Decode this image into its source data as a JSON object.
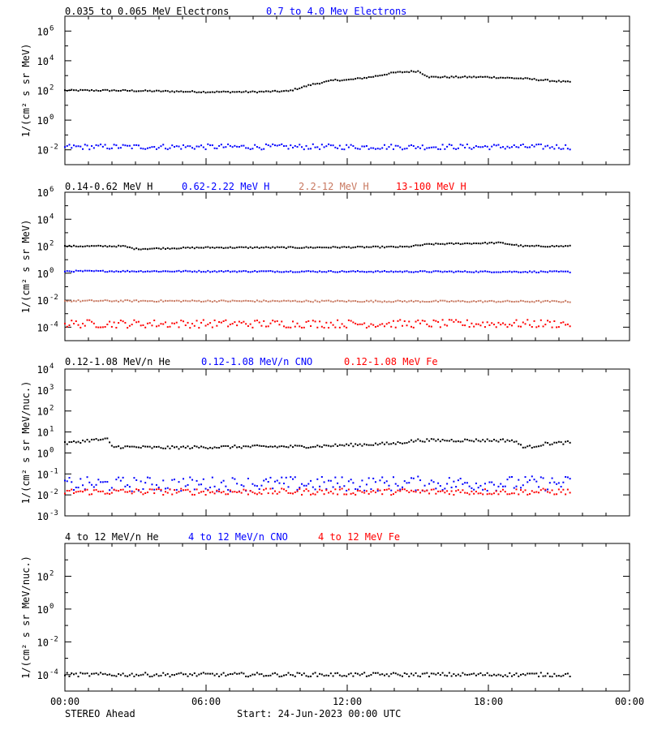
{
  "footer": {
    "observatory": "STEREO Ahead",
    "start": "Start: 24-Jun-2023 00:00 UTC"
  },
  "x_axis": {
    "range_hours": [
      0,
      24
    ],
    "ticks": [
      {
        "hour": 0,
        "label": "00:00"
      },
      {
        "hour": 6,
        "label": "06:00"
      },
      {
        "hour": 12,
        "label": "12:00"
      },
      {
        "hour": 18,
        "label": "18:00"
      },
      {
        "hour": 24,
        "label": "00:00"
      }
    ]
  },
  "chart_data": [
    {
      "type": "scatter",
      "ylabel": "1/(cm² s sr MeV)",
      "yscale": "log",
      "ylim_exp": [
        -3,
        7
      ],
      "yticks_exp": [
        -2,
        0,
        2,
        4,
        6
      ],
      "series": [
        {
          "name": "0.035 to 0.065 MeV Electrons",
          "color": "#000000",
          "x": [
            0,
            2,
            4,
            6,
            8,
            9.5,
            10.5,
            11.5,
            12,
            13,
            14,
            15,
            15.5,
            18,
            19.5,
            21.5
          ],
          "logy": [
            2.0,
            2.0,
            1.95,
            1.9,
            1.9,
            1.95,
            2.4,
            2.7,
            2.7,
            2.9,
            3.2,
            3.3,
            2.9,
            2.9,
            2.8,
            2.55
          ],
          "scatter": 0.05
        },
        {
          "name": "0.7 to 4.0 Mev Electrons",
          "color": "#0000ff",
          "x": [
            0,
            21.5
          ],
          "logy": [
            -1.8,
            -1.8
          ],
          "scatter": 0.18
        }
      ]
    },
    {
      "type": "scatter",
      "ylabel": "1/(cm² s sr MeV)",
      "yscale": "log",
      "ylim_exp": [
        -5,
        6
      ],
      "yticks_exp": [
        -4,
        -2,
        0,
        2,
        4,
        6
      ],
      "series": [
        {
          "name": "0.14-0.62 MeV H",
          "color": "#000000",
          "x": [
            0,
            2.5,
            3,
            6,
            10,
            14.5,
            15.5,
            18.5,
            19.5,
            21.5
          ],
          "logy": [
            2.0,
            2.0,
            1.8,
            1.9,
            1.9,
            1.95,
            2.15,
            2.25,
            2.0,
            2.0
          ],
          "scatter": 0.05
        },
        {
          "name": "0.62-2.22 MeV H",
          "color": "#0000ff",
          "x": [
            0,
            21.5
          ],
          "logy": [
            0.15,
            0.1
          ],
          "scatter": 0.05
        },
        {
          "name": "2.2-12 MeV H",
          "color": "#c87860",
          "x": [
            0,
            21.5
          ],
          "logy": [
            -2.05,
            -2.1
          ],
          "scatter": 0.06
        },
        {
          "name": "13-100 MeV H",
          "color": "#ff0000",
          "x": [
            0,
            21.5
          ],
          "logy": [
            -3.75,
            -3.75
          ],
          "scatter": 0.3
        }
      ]
    },
    {
      "type": "scatter",
      "ylabel": "1/(cm² s sr MeV/nuc.)",
      "yscale": "log",
      "ylim_exp": [
        -3,
        4
      ],
      "yticks_exp": [
        -3,
        -2,
        -1,
        0,
        1,
        2,
        3,
        4
      ],
      "series": [
        {
          "name": "0.12-1.08 MeV/n He",
          "color": "#000000",
          "x": [
            0,
            1,
            1.8,
            2,
            4,
            8,
            10,
            14,
            15,
            19,
            19.6,
            20.5,
            21.5
          ],
          "logy": [
            0.45,
            0.6,
            0.65,
            0.3,
            0.25,
            0.3,
            0.3,
            0.45,
            0.6,
            0.6,
            0.25,
            0.45,
            0.5
          ],
          "scatter": 0.07
        },
        {
          "name": "0.12-1.08 MeV/n CNO",
          "color": "#0000ff",
          "x": [
            0,
            21.5
          ],
          "logy": [
            -1.5,
            -1.45
          ],
          "scatter": 0.35
        },
        {
          "name": "0.12-1.08 MeV Fe",
          "color": "#ff0000",
          "x": [
            0,
            21.5
          ],
          "logy": [
            -1.85,
            -1.85
          ],
          "scatter": 0.15
        }
      ]
    },
    {
      "type": "scatter",
      "ylabel": "1/(cm² s sr MeV/nuc.)",
      "yscale": "log",
      "ylim_exp": [
        -5,
        4
      ],
      "yticks_exp": [
        -4,
        -2,
        0,
        2
      ],
      "series": [
        {
          "name": "4 to 12 MeV/n He",
          "color": "#000000",
          "x": [
            0,
            21.5
          ],
          "logy": [
            -4.0,
            -4.0
          ],
          "scatter": 0.12
        }
      ],
      "legend_extra": [
        {
          "name": "4 to 12 MeV/n CNO",
          "color": "#0000ff"
        },
        {
          "name": "4 to 12 MeV Fe",
          "color": "#ff0000"
        }
      ]
    }
  ]
}
